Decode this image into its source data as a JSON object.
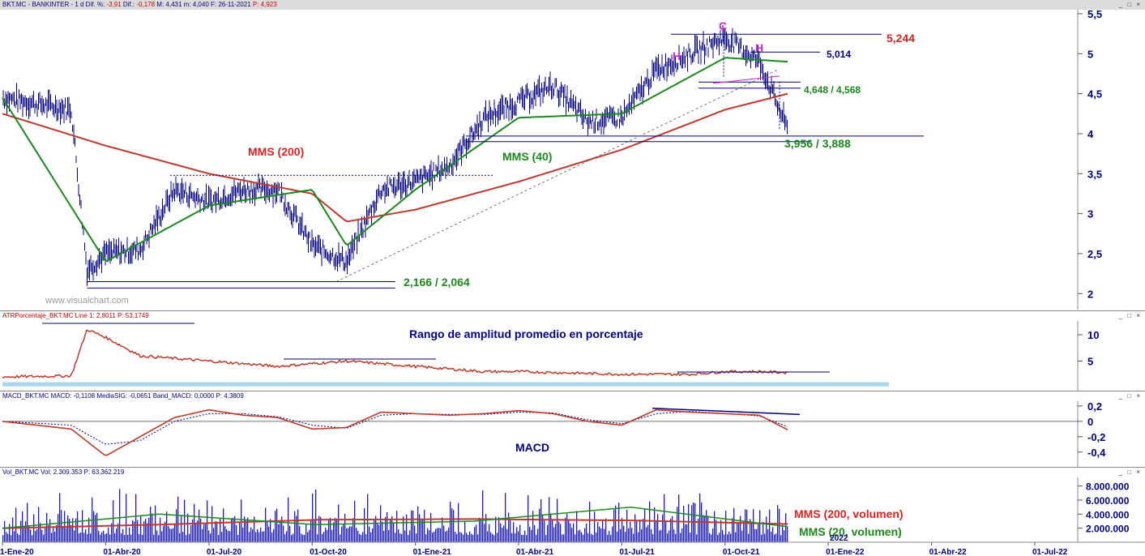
{
  "header_main": "BKT.MC - BANKINTER -  1 d  Dif. %: -3,91  Dif.: -0,178  M: 4,431  m: 4,040  F: 26-11-2021  P: 4,923",
  "header_main_parts": [
    {
      "t": "BKT.MC - BANKINTER -  1 d  Dif. %: ",
      "c": "#000080"
    },
    {
      "t": "-3,91",
      "c": "#cc0000"
    },
    {
      "t": "  Dif.: ",
      "c": "#000080"
    },
    {
      "t": "-0,178",
      "c": "#cc0000"
    },
    {
      "t": "  M: 4,431  m: 4,040  F: 26-11-2021  ",
      "c": "#000080"
    },
    {
      "t": "P: 4,923",
      "c": "#cc0000"
    }
  ],
  "header_atr": "ATRPorcentaje_BKT.MC  Line 1: 2,8011  P: 53,1749",
  "header_macd": "MACD_BKT.MC  MACD: -0,1108  MediaSIG: -0,0651  Band_MACD: 0,0000  P: 4,3809",
  "header_vol": "Vol_BKT.MC  Vol: 2.309.353  P: 63.362.219",
  "window_buttons": "_ □ ×",
  "watermark": "www.visualchart.com",
  "annotations": {
    "mms200": "MMS (200)",
    "mms40": "MMS (40)",
    "level_top": "5,244",
    "level_5014": "5,014",
    "level_neck": "4,648 / 4,568",
    "level_mid": "3,956 / 3,888",
    "level_low": "2,166 / 2,064",
    "pattern_c": "C",
    "pattern_h1": "H",
    "pattern_h2": "H",
    "atr_title": "Rango de amplitud promedio en porcentaje",
    "macd_title": "MACD",
    "vol_mms200": "MMS (200, volumen)",
    "vol_mms20": "MMS (20, volumen)",
    "year_label": "2022"
  },
  "colors": {
    "price": "#000080",
    "mms200": "#c0392b",
    "mms40": "#1a8a1a",
    "atr": "#c0392b",
    "macd": "#c0392b",
    "volume": "#1a1acc",
    "annotation_red": "#dd2222",
    "annotation_green": "#1a8a1a",
    "annotation_magenta": "#d42ad4",
    "annotation_navy": "#000080",
    "atr_band": "#a8d8f0"
  },
  "chart_data": [
    {
      "type": "line",
      "name": "price",
      "x_ticks": [
        "1-Ene-20",
        "01-Abr-20",
        "01-Jul-20",
        "01-Oct-20",
        "01-Ene-21",
        "01-Abr-21",
        "01-Jul-21",
        "01-Oct-21",
        "01-Ene-22",
        "01-Abr-22",
        "01-Jul-22"
      ],
      "y_ticks": [
        "2",
        "2,5",
        "3",
        "3,5",
        "4",
        "4,5",
        "5",
        "5,5"
      ],
      "ylim": [
        1.8,
        5.55
      ],
      "series": [
        {
          "name": "MMS (200)",
          "x": [
            "1-Ene-20",
            "01-Abr-20",
            "01-Jul-20",
            "01-Oct-20",
            "01-Nov-20",
            "01-Ene-21",
            "01-Abr-21",
            "01-Jul-21",
            "01-Oct-21",
            "26-Nov-21"
          ],
          "values": [
            4.25,
            3.85,
            3.5,
            3.25,
            2.9,
            3.05,
            3.4,
            3.8,
            4.3,
            4.5
          ]
        },
        {
          "name": "MMS (40)",
          "x": [
            "1-Ene-20",
            "01-Abr-20",
            "01-Jul-20",
            "01-Oct-20",
            "01-Nov-20",
            "01-Ene-21",
            "01-Abr-21",
            "01-Jul-21",
            "01-Oct-21",
            "26-Nov-21"
          ],
          "values": [
            4.45,
            2.4,
            3.1,
            3.3,
            2.6,
            3.3,
            4.2,
            4.25,
            4.95,
            4.9
          ]
        },
        {
          "name": "BKT.MC",
          "x": [
            "1-Ene-20",
            "01-Mar-20",
            "15-Mar-20",
            "01-Abr-20",
            "01-May-20",
            "01-Jun-20",
            "01-Jul-20",
            "01-Ago-20",
            "01-Sep-20",
            "01-Oct-20",
            "01-Nov-20",
            "01-Dic-20",
            "01-Ene-21",
            "01-Feb-21",
            "01-Mar-21",
            "01-Abr-21",
            "01-May-21",
            "01-Jun-21",
            "01-Jul-21",
            "01-Ago-21",
            "01-Sep-21",
            "01-Oct-21",
            "01-Nov-21",
            "26-Nov-21"
          ],
          "values": [
            4.45,
            4.3,
            2.3,
            2.5,
            2.55,
            3.3,
            3.15,
            3.3,
            3.3,
            2.6,
            2.4,
            3.3,
            3.4,
            3.6,
            4.2,
            4.4,
            4.6,
            4.15,
            4.2,
            4.8,
            5.0,
            5.2,
            4.9,
            4.05
          ]
        }
      ]
    },
    {
      "type": "line",
      "name": "atr",
      "y_ticks": [
        "5",
        "10"
      ],
      "ylim": [
        0,
        12
      ],
      "series": [
        {
          "name": "ATRPorcentaje",
          "x": [
            "1-Ene-20",
            "01-Mar-20",
            "15-Mar-20",
            "01-Abr-20",
            "01-May-20",
            "01-Jun-20",
            "01-Ago-20",
            "01-Sep-20",
            "01-Oct-20",
            "01-Nov-20",
            "01-Dic-20",
            "01-Ene-21",
            "01-Mar-21",
            "01-Abr-21",
            "01-Jul-21",
            "01-Sep-21",
            "01-Oct-21",
            "01-Nov-21",
            "26-Nov-21"
          ],
          "values": [
            2.0,
            2.2,
            11.0,
            9.5,
            6.0,
            5.5,
            4.5,
            4.0,
            4.5,
            5.0,
            4.5,
            4.0,
            3.0,
            3.0,
            2.5,
            2.5,
            3.0,
            3.0,
            2.8
          ]
        }
      ]
    },
    {
      "type": "line",
      "name": "macd",
      "y_ticks": [
        "0,2",
        "0",
        "-0,2",
        "-0,4"
      ],
      "ylim": [
        -0.55,
        0.22
      ],
      "series": [
        {
          "name": "MACD",
          "x": [
            "1-Ene-20",
            "01-Mar-20",
            "01-Abr-20",
            "01-May-20",
            "01-Jun-20",
            "01-Jul-20",
            "01-Ago-20",
            "01-Sep-20",
            "01-Oct-20",
            "01-Nov-20",
            "01-Dic-20",
            "01-Ene-21",
            "01-Feb-21",
            "01-Mar-21",
            "01-Abr-21",
            "01-May-21",
            "01-Jun-21",
            "01-Jul-21",
            "01-Ago-21",
            "01-Sep-21",
            "01-Oct-21",
            "01-Nov-21",
            "26-Nov-21"
          ],
          "values": [
            0.0,
            -0.1,
            -0.45,
            -0.2,
            0.05,
            0.15,
            0.08,
            0.05,
            -0.1,
            -0.08,
            0.12,
            0.1,
            0.08,
            0.1,
            0.14,
            0.1,
            0.0,
            -0.05,
            0.15,
            0.12,
            0.1,
            0.08,
            -0.11
          ]
        },
        {
          "name": "MediaSIG",
          "x": [
            "1-Ene-20",
            "01-Mar-20",
            "01-Abr-20",
            "01-May-20",
            "01-Jun-20",
            "01-Jul-20",
            "01-Ago-20",
            "01-Sep-20",
            "01-Oct-20",
            "01-Nov-20",
            "01-Dic-20",
            "01-Ene-21",
            "01-Feb-21",
            "01-Mar-21",
            "01-Abr-21",
            "01-May-21",
            "01-Jun-21",
            "01-Jul-21",
            "01-Ago-21",
            "01-Sep-21",
            "01-Oct-21",
            "01-Nov-21",
            "26-Nov-21"
          ],
          "values": [
            0.0,
            -0.05,
            -0.3,
            -0.25,
            0.0,
            0.1,
            0.1,
            0.06,
            -0.05,
            -0.09,
            0.08,
            0.1,
            0.09,
            0.09,
            0.12,
            0.11,
            0.02,
            -0.03,
            0.1,
            0.13,
            0.1,
            0.07,
            -0.07
          ]
        }
      ]
    },
    {
      "type": "bar",
      "name": "volume",
      "y_ticks": [
        "2.000.000",
        "4.000.000",
        "6.000.000",
        "8.000.000"
      ],
      "ylim": [
        0,
        9000000
      ],
      "series": [
        {
          "name": "MMS (200, volumen)",
          "values": [
            2000000,
            2500000,
            3200000,
            3300000,
            3100000,
            2600000
          ]
        },
        {
          "name": "MMS (20, volumen)",
          "values": [
            2000000,
            4000000,
            2500000,
            3000000,
            5000000,
            2200000
          ]
        }
      ]
    }
  ]
}
